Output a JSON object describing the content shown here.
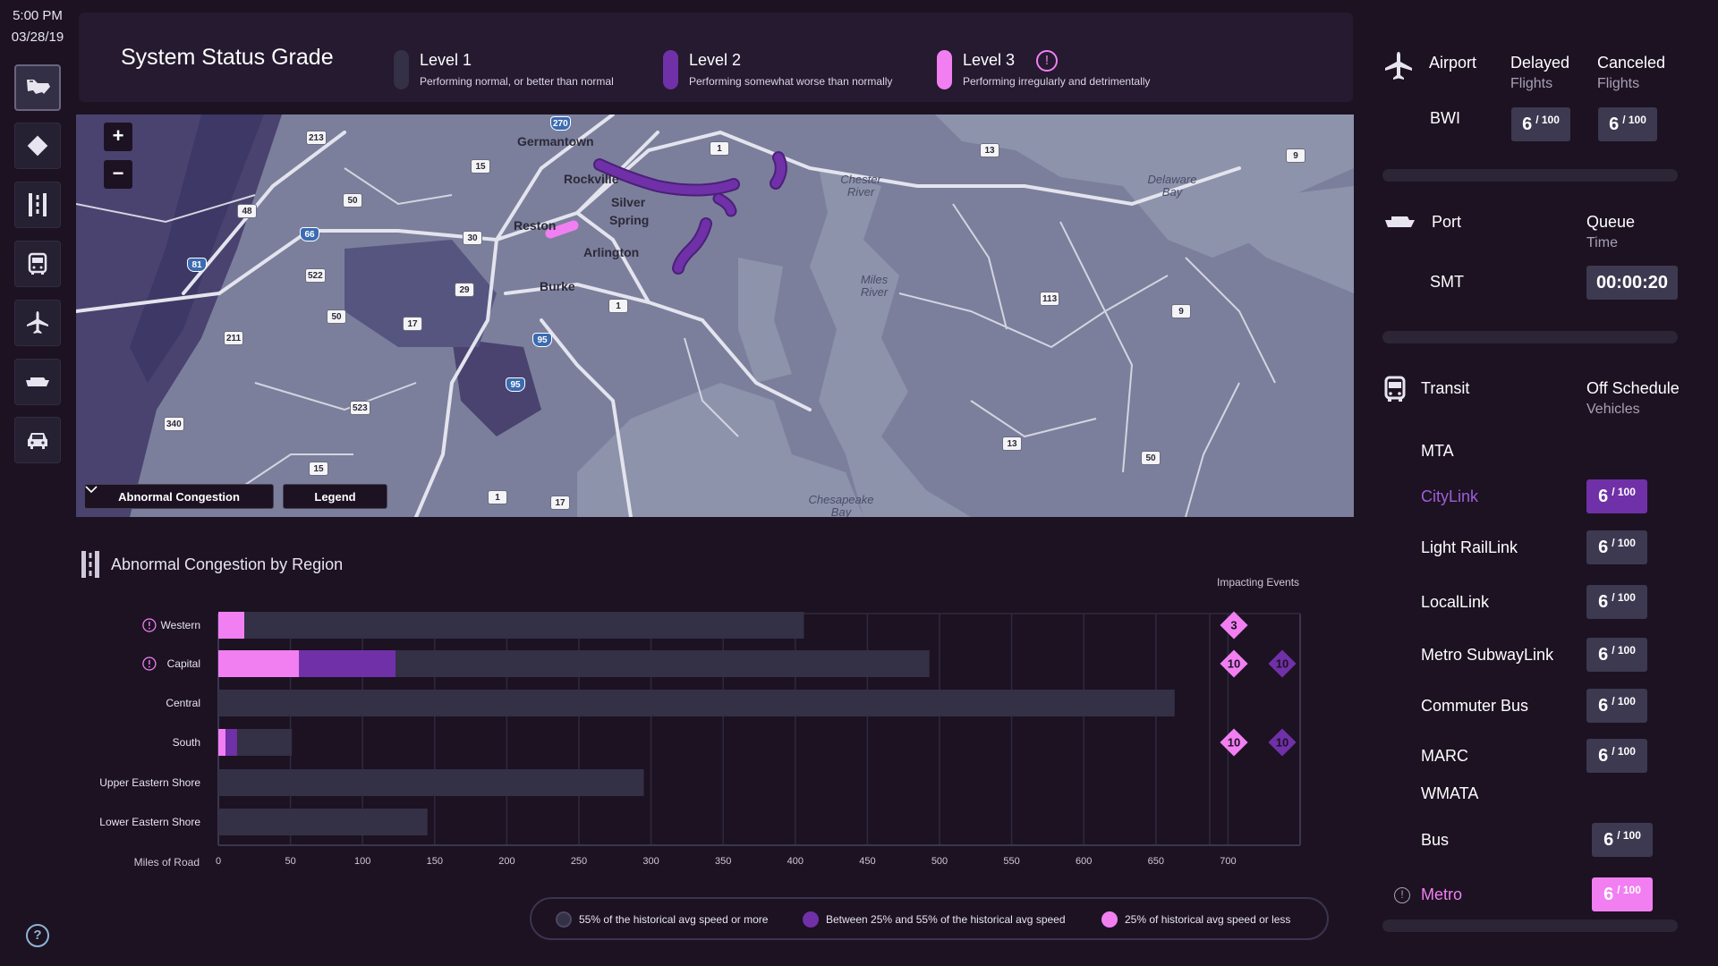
{
  "clock": {
    "time": "5:00 PM",
    "date": "03/28/19"
  },
  "rail": [
    {
      "name": "rail-map-button",
      "icon": "map-icon",
      "active": true
    },
    {
      "name": "rail-roads-button",
      "icon": "road-sign-icon",
      "active": false
    },
    {
      "name": "rail-traffic-button",
      "icon": "lanes-icon",
      "active": false
    },
    {
      "name": "rail-transit-button",
      "icon": "bus-icon",
      "active": false
    },
    {
      "name": "rail-airport-button",
      "icon": "airplane-icon",
      "active": false
    },
    {
      "name": "rail-port-button",
      "icon": "ship-icon",
      "active": false
    },
    {
      "name": "rail-car-button",
      "icon": "car-icon",
      "active": false
    }
  ],
  "help_label": "?",
  "status": {
    "title": "System Status Grade",
    "levels": [
      {
        "name": "Level 1",
        "desc": "Performing normal, or better than normal",
        "color": "#343046"
      },
      {
        "name": "Level 2",
        "desc": "Performing somewhat worse than normally",
        "color": "#7030a8"
      },
      {
        "name": "Level 3",
        "desc": "Performing irregularly and detrimentally",
        "color": "#f17ff2",
        "warn": "!"
      }
    ]
  },
  "map": {
    "zoom_in": "+",
    "zoom_out": "−",
    "layer_select": "Abnormal Congestion",
    "legend_button": "Legend",
    "places": [
      "Germantown",
      "Rockville",
      "Silver",
      "Spring",
      "Reston",
      "Arlington",
      "Burke"
    ],
    "water": [
      "Chester River",
      "Delaware Bay",
      "Miles River",
      "Chesapeake Bay"
    ],
    "shields": [
      "270",
      "213",
      "15",
      "1",
      "48",
      "50",
      "66",
      "81",
      "30",
      "29",
      "50",
      "522",
      "17",
      "211",
      "95",
      "95",
      "1",
      "13",
      "9",
      "113",
      "9",
      "50",
      "13",
      "340",
      "523",
      "15",
      "1",
      "17"
    ]
  },
  "congestion": {
    "title": "Abnormal Congestion by Region",
    "impacting_label": "Impacting Events",
    "xlabel": "Miles of Road"
  },
  "chart_data": {
    "type": "bar",
    "stacked": true,
    "orientation": "horizontal",
    "title": "Abnormal Congestion by Region",
    "xlabel": "Miles of Road",
    "xlim": [
      0,
      750
    ],
    "xticks": [
      0,
      50,
      100,
      150,
      200,
      250,
      300,
      350,
      400,
      450,
      500,
      550,
      600,
      650,
      700
    ],
    "categories": [
      "Western",
      "Capital",
      "Central",
      "South",
      "Upper Eastern Shore",
      "Lower Eastern Shore"
    ],
    "warn_categories": [
      "Western",
      "Capital"
    ],
    "series": [
      {
        "name": "25% of historical avg speed or less",
        "color": "#f17ff2",
        "values": [
          18,
          56,
          0,
          5,
          0,
          0
        ]
      },
      {
        "name": "Between 25% and 55% of the historical avg speed",
        "color": "#7030a8",
        "values": [
          0,
          67,
          0,
          8,
          0,
          0
        ]
      },
      {
        "name": "55% of the historical avg speed or more",
        "color": "#343046",
        "values": [
          388,
          370,
          663,
          38,
          295,
          145
        ]
      }
    ],
    "impacting_events": [
      {
        "category": "Western",
        "pink": 3,
        "purple": null
      },
      {
        "category": "Capital",
        "pink": 10,
        "purple": 10
      },
      {
        "category": "South",
        "pink": 10,
        "purple": 10
      }
    ],
    "grid": true
  },
  "speed_legend": [
    {
      "label": "55%  of the historical avg speed or more",
      "color": "#343046"
    },
    {
      "label": "Between 25% and 55% of the historical avg speed",
      "color": "#7030a8"
    },
    {
      "label": "25% of historical avg speed or less",
      "color": "#f17ff2"
    }
  ],
  "airport": {
    "heading": "Airport",
    "col1": "Delayed",
    "col1_sub": "Flights",
    "col2": "Canceled",
    "col2_sub": "Flights",
    "rows": [
      {
        "name": "BWI",
        "delayed": "6",
        "canceled": "6",
        "of": "/ 100"
      }
    ]
  },
  "port": {
    "heading": "Port",
    "col": "Queue",
    "col_sub": "Time",
    "rows": [
      {
        "name": "SMT",
        "queue": "00:00:20"
      }
    ]
  },
  "transit": {
    "heading": "Transit",
    "col": "Off Schedule",
    "col_sub": "Vehicles",
    "groups": [
      {
        "name": "MTA",
        "items": [
          {
            "name": "CityLink",
            "value": "6",
            "of": "/ 100",
            "state": "purple"
          },
          {
            "name": "Light RailLink",
            "value": "6",
            "of": "/ 100",
            "state": "normal"
          },
          {
            "name": "LocalLink",
            "value": "6",
            "of": "/ 100",
            "state": "normal"
          },
          {
            "name": "Metro SubwayLink",
            "value": "6",
            "of": "/ 100",
            "state": "normal"
          },
          {
            "name": "Commuter Bus",
            "value": "6",
            "of": "/ 100",
            "state": "normal"
          },
          {
            "name": "MARC",
            "value": "6",
            "of": "/ 100",
            "state": "normal"
          }
        ]
      },
      {
        "name": "WMATA",
        "items": [
          {
            "name": "Bus",
            "value": "6",
            "of": "/ 100",
            "state": "normal"
          },
          {
            "name": "Metro",
            "value": "6",
            "of": "/ 100",
            "state": "pink",
            "warn": "!"
          }
        ]
      }
    ]
  },
  "colors": {
    "level1": "#343046",
    "level2": "#7030a8",
    "level3": "#f17ff2",
    "background": "#1c1222"
  }
}
